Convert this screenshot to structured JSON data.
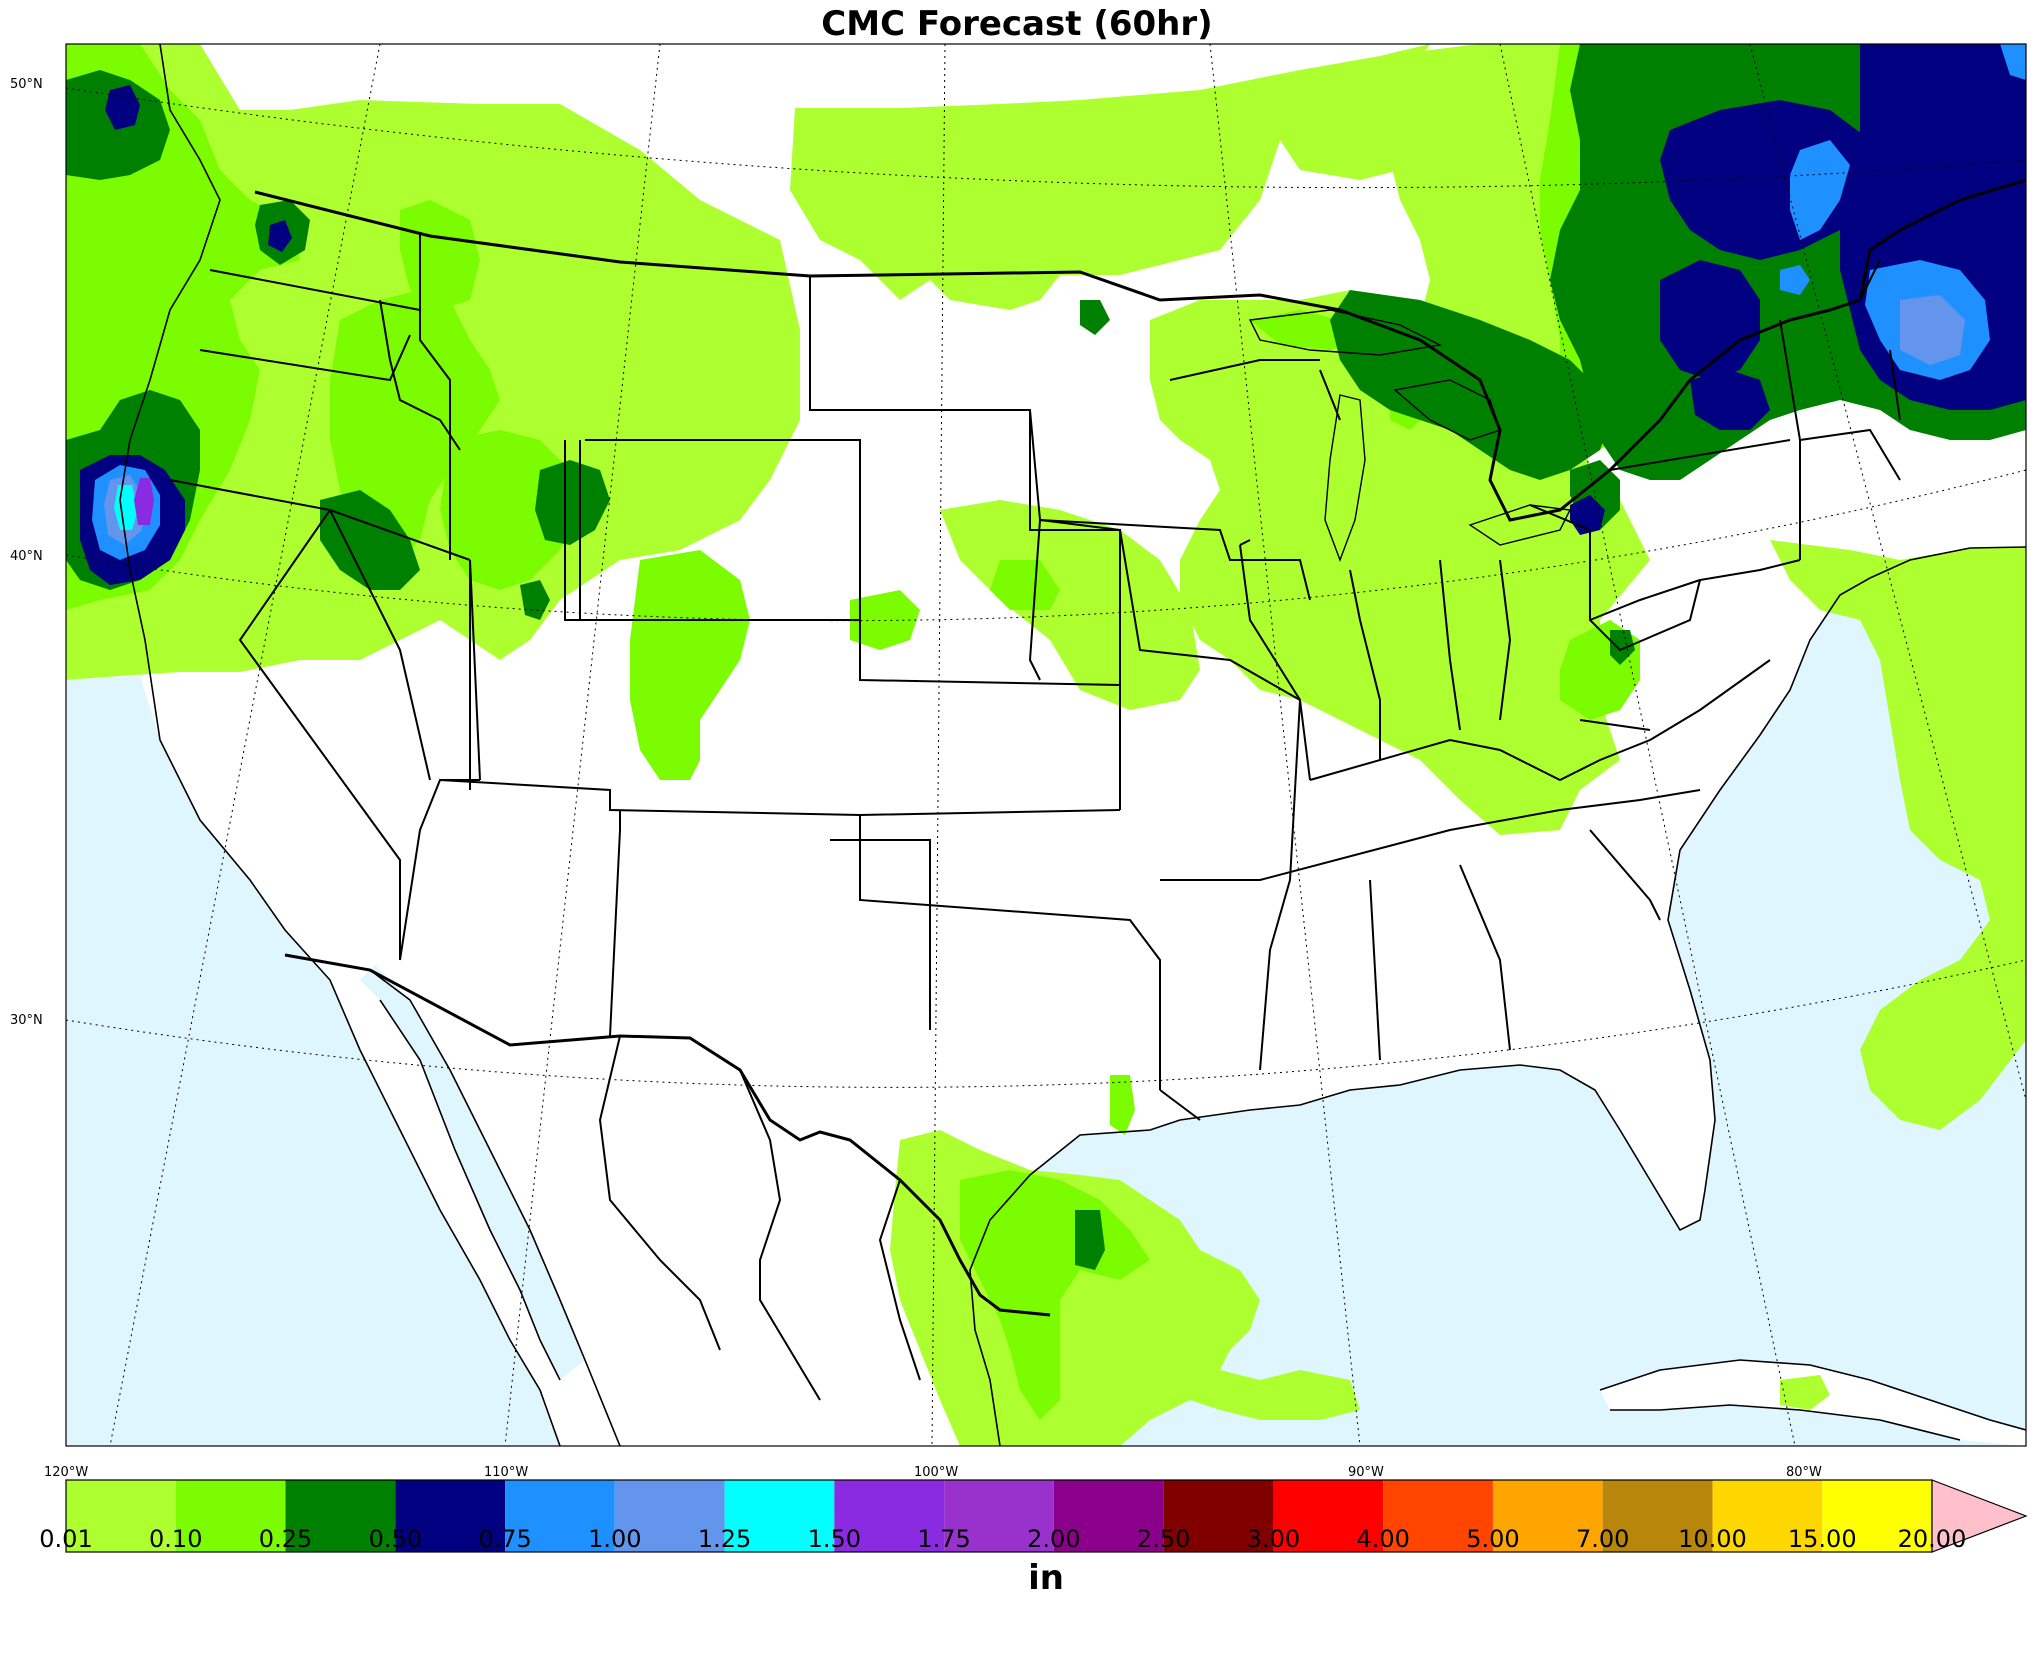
{
  "title": "CMC Forecast (60hr)",
  "map": {
    "ocean_color": "#dff6ff",
    "land_color": "#ffffff",
    "lat_labels": [
      "50°N",
      "40°N",
      "30°N"
    ],
    "lon_labels": [
      "120°W",
      "110°W",
      "100°W",
      "90°W",
      "80°W"
    ]
  },
  "colorbar": {
    "units": "in",
    "labels": [
      "0.01",
      "0.10",
      "0.25",
      "0.50",
      "0.75",
      "1.00",
      "1.25",
      "1.50",
      "1.75",
      "2.00",
      "2.50",
      "3.00",
      "4.00",
      "5.00",
      "7.00",
      "10.00",
      "15.00",
      "20.00"
    ],
    "colors": [
      "#adff2f",
      "#7cfc00",
      "#008000",
      "#000080",
      "#1e90ff",
      "#6495ed",
      "#00ffff",
      "#8a2be2",
      "#9932cc",
      "#8b008b",
      "#800000",
      "#ff0000",
      "#ff4500",
      "#ffa500",
      "#b8860b",
      "#ffd700",
      "#ffff00"
    ],
    "extend_color": "#ffc0cb"
  }
}
